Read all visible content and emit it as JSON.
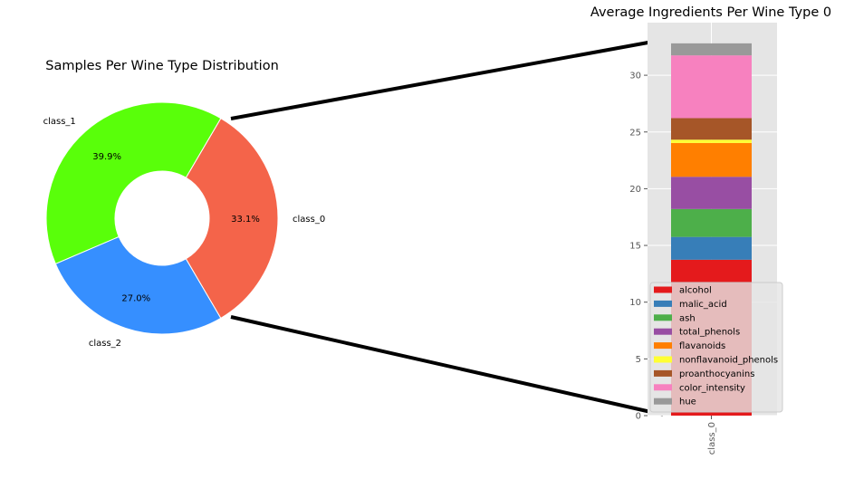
{
  "chart_data": [
    {
      "type": "pie",
      "title": "Samples Per Wine Type Distribution",
      "labels": [
        "class_0",
        "class_1",
        "class_2"
      ],
      "values": [
        33.1,
        39.9,
        27.0
      ],
      "percent_labels": [
        "33.1%",
        "39.9%",
        "27.0%"
      ],
      "colors": [
        "#f4644a",
        "#59ff0a",
        "#368fff"
      ],
      "donut": true
    },
    {
      "type": "bar",
      "stacked": true,
      "title": "Average Ingredients Per Wine Type 0",
      "categories": [
        "class_0"
      ],
      "series": [
        {
          "name": "alcohol",
          "color": "#e41a1c",
          "values": [
            13.74
          ]
        },
        {
          "name": "malic_acid",
          "color": "#377eb8",
          "values": [
            2.01
          ]
        },
        {
          "name": "ash",
          "color": "#4daf4a",
          "values": [
            2.46
          ]
        },
        {
          "name": "total_phenols",
          "color": "#984ea3",
          "values": [
            2.84
          ]
        },
        {
          "name": "flavanoids",
          "color": "#ff7f00",
          "values": [
            2.98
          ]
        },
        {
          "name": "nonflavanoid_phenols",
          "color": "#ffff33",
          "values": [
            0.29
          ]
        },
        {
          "name": "proanthocyanins",
          "color": "#a65628",
          "values": [
            1.9
          ]
        },
        {
          "name": "color_intensity",
          "color": "#f781bf",
          "values": [
            5.53
          ]
        },
        {
          "name": "hue",
          "color": "#999999",
          "values": [
            1.06
          ]
        }
      ],
      "yticks": [
        "0",
        "5",
        "10",
        "15",
        "20",
        "25",
        "30"
      ],
      "ylim": [
        0,
        33
      ],
      "grid": true,
      "legend_position": "lower-right"
    }
  ]
}
